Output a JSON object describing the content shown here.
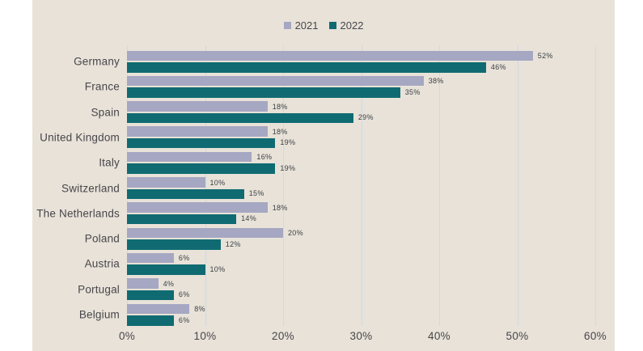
{
  "colors": {
    "page_background": "#ffffff",
    "panel_background": "#e8e2d9",
    "gridline": "#c9dcea",
    "text": "#474649",
    "value_text": "#3c4044",
    "series_2021": "#a6a7c2",
    "series_2022": "#0f6b71"
  },
  "chart_data": {
    "type": "bar",
    "orientation": "horizontal",
    "title": "",
    "xlabel": "",
    "ylabel": "",
    "xlim": [
      0,
      60
    ],
    "grid": "vertical",
    "legend_position": "top-center",
    "value_suffix": "%",
    "x_ticks": [
      "0%",
      "10%",
      "20%",
      "30%",
      "40%",
      "50%",
      "60%"
    ],
    "categories": [
      "Germany",
      "France",
      "Spain",
      "United Kingdom",
      "Italy",
      "Switzerland",
      "The Netherlands",
      "Poland",
      "Austria",
      "Portugal",
      "Belgium"
    ],
    "series": [
      {
        "name": "2021",
        "color": "#a6a7c2",
        "values": [
          52,
          38,
          18,
          18,
          16,
          10,
          18,
          20,
          6,
          4,
          8
        ]
      },
      {
        "name": "2022",
        "color": "#0f6b71",
        "values": [
          46,
          35,
          29,
          19,
          19,
          15,
          14,
          12,
          10,
          6,
          6
        ]
      }
    ]
  }
}
